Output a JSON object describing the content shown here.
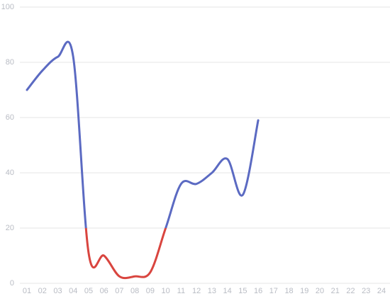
{
  "chart_data": {
    "type": "line",
    "categories": [
      "01",
      "02",
      "03",
      "04",
      "05",
      "06",
      "07",
      "08",
      "09",
      "10",
      "11",
      "12",
      "13",
      "14",
      "15",
      "16",
      "17",
      "18",
      "19",
      "20",
      "21",
      "22",
      "23",
      "24"
    ],
    "series": [
      {
        "values": [
          70,
          77,
          82,
          82,
          11,
          10,
          2.5,
          2.5,
          4,
          20,
          36,
          36,
          40,
          45,
          32,
          59,
          null,
          null,
          null,
          null,
          null,
          null,
          null,
          null
        ]
      }
    ],
    "ylim": [
      0,
      100
    ],
    "yticks": [
      0,
      20,
      40,
      60,
      80,
      100
    ],
    "grid": true,
    "smooth": true,
    "visual_map": {
      "threshold": 20,
      "below_color": "#d9453f",
      "above_color": "#5b6ac2"
    }
  }
}
